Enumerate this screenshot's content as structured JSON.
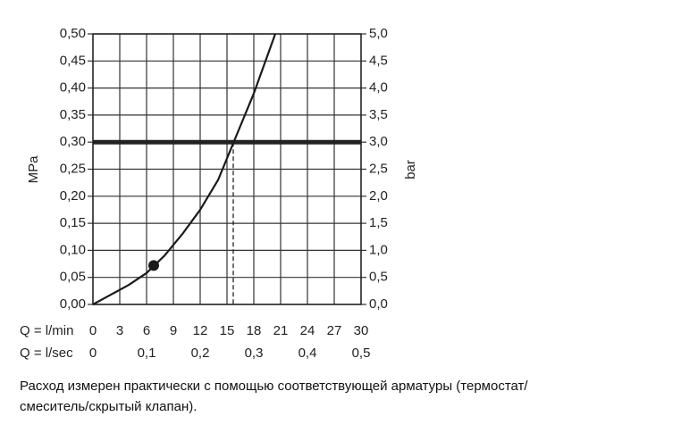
{
  "chart_data": {
    "type": "line",
    "y_label": "MPa",
    "y2_label": "bar",
    "x_label": "Q = l/min",
    "x2_label": "Q = l/sec",
    "xlim": [
      0,
      30
    ],
    "xticks": [
      0,
      3,
      6,
      9,
      12,
      15,
      18,
      21,
      24,
      27,
      30
    ],
    "x2lim": [
      0,
      0.5
    ],
    "x2ticks": [
      0,
      {
        "value": 0.1,
        "label": "0,1"
      },
      {
        "value": 0.2,
        "label": "0,2"
      },
      {
        "value": 0.3,
        "label": "0,3"
      },
      {
        "value": 0.4,
        "label": "0,4"
      },
      {
        "value": 0.5,
        "label": "0,5"
      }
    ],
    "ylim": [
      0,
      0.5
    ],
    "yticks": [
      {
        "value": 0,
        "label": "0,00"
      },
      {
        "value": 0.05,
        "label": "0,05"
      },
      {
        "value": 0.1,
        "label": "0,10"
      },
      {
        "value": 0.15,
        "label": "0,15"
      },
      {
        "value": 0.2,
        "label": "0,20"
      },
      {
        "value": 0.25,
        "label": "0,25"
      },
      {
        "value": 0.3,
        "label": "0,30"
      },
      {
        "value": 0.35,
        "label": "0,35"
      },
      {
        "value": 0.4,
        "label": "0,40"
      },
      {
        "value": 0.45,
        "label": "0,45"
      },
      {
        "value": 0.5,
        "label": "0,50"
      }
    ],
    "y2lim": [
      0,
      5
    ],
    "y2ticks": [
      {
        "value": 0,
        "label": "0,0"
      },
      {
        "value": 0.5,
        "label": "0,5"
      },
      {
        "value": 1,
        "label": "1,0"
      },
      {
        "value": 1.5,
        "label": "1,5"
      },
      {
        "value": 2,
        "label": "2,0"
      },
      {
        "value": 2.5,
        "label": "2,5"
      },
      {
        "value": 3,
        "label": "3,0"
      },
      {
        "value": 3.5,
        "label": "3,5"
      },
      {
        "value": 4,
        "label": "4,0"
      },
      {
        "value": 4.5,
        "label": "4,5"
      },
      {
        "value": 5,
        "label": "5,0"
      }
    ],
    "grid": true,
    "series": [
      {
        "color": "#1a1a1a",
        "x": [
          0,
          2,
          4,
          6,
          8,
          10,
          12,
          14,
          16,
          18,
          20.4
        ],
        "values": [
          0,
          0.018,
          0.036,
          0.058,
          0.09,
          0.13,
          0.175,
          0.23,
          0.31,
          0.39,
          0.5
        ]
      }
    ],
    "marker": {
      "x": 6.8,
      "y": 0.072
    },
    "reference_y": 0.3,
    "reference_x": 15.7,
    "caption": [
      "Расход измерен практически с помощью соответствующей арматуры (термостат/",
      "смеситель/скрытый клапан)."
    ]
  }
}
